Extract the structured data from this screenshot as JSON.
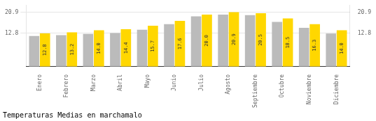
{
  "chart_data": {
    "type": "bar",
    "title": "Temperaturas Medias en marchamalo",
    "categories": [
      "Enero",
      "Febrero",
      "Marzo",
      "Abril",
      "Mayo",
      "Junio",
      "Julio",
      "Agosto",
      "Septiembre",
      "Octubre",
      "Noviembre",
      "Diciembre"
    ],
    "series": [
      {
        "color": "#BBBBBB",
        "values": [
          11.8,
          12.1,
          12.6,
          12.9,
          14.2,
          16.3,
          19.3,
          20.0,
          19.8,
          17.2,
          14.9,
          12.7
        ]
      },
      {
        "color": "#FFD700",
        "values": [
          12.8,
          13.2,
          14.0,
          14.4,
          15.7,
          17.6,
          20.0,
          20.9,
          20.5,
          18.5,
          16.3,
          14.0
        ],
        "value_labels": [
          "12.8",
          "13.2",
          "14.0",
          "14.4",
          "15.7",
          "17.6",
          "20.0",
          "20.9",
          "20.5",
          "18.5",
          "16.3",
          "14.0"
        ],
        "data_labels": true
      }
    ],
    "ylim": [
      0,
      23.5
    ],
    "yticks": [
      12.8,
      20.9
    ],
    "y2lim": [
      0,
      23.5
    ],
    "y2ticks": [
      12.8,
      20.9
    ],
    "grid": true
  }
}
